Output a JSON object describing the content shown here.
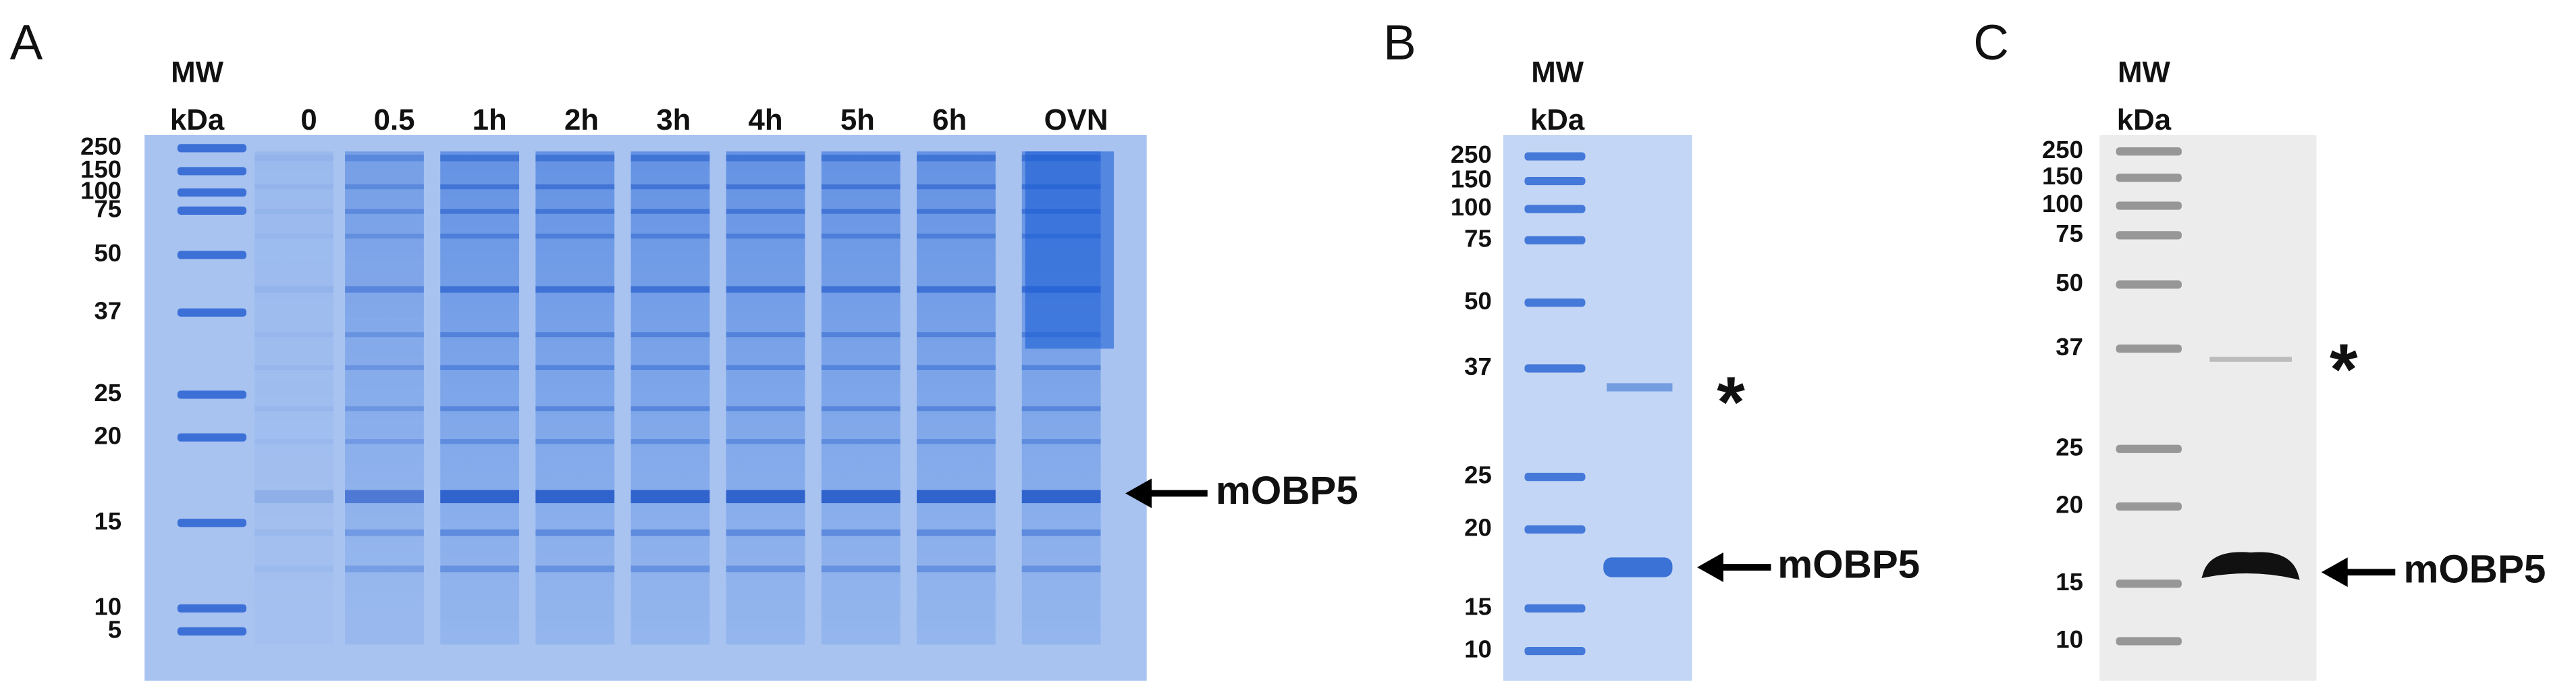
{
  "panels": [
    {
      "label": "A",
      "mw": "MW",
      "unit": "kDa",
      "lanes": [
        "0",
        "0.5",
        "1h",
        "2h",
        "3h",
        "4h",
        "5h",
        "6h",
        "OVN"
      ],
      "markers": [
        "250",
        "150",
        "100",
        "75",
        "50",
        "37",
        "25",
        "20",
        "15",
        "10",
        "5"
      ],
      "annotations": [
        "mOBP5"
      ]
    },
    {
      "label": "B",
      "mw": "MW",
      "unit": "kDa",
      "markers": [
        "250",
        "150",
        "100",
        "75",
        "50",
        "37",
        "25",
        "20",
        "15",
        "10"
      ],
      "annotations": [
        "*",
        "mOBP5"
      ]
    },
    {
      "label": "C",
      "mw": "MW",
      "unit": "kDa",
      "markers": [
        "250",
        "150",
        "100",
        "75",
        "50",
        "37",
        "25",
        "20",
        "15",
        "10"
      ],
      "annotations": [
        "*",
        "mOBP5"
      ]
    }
  ]
}
